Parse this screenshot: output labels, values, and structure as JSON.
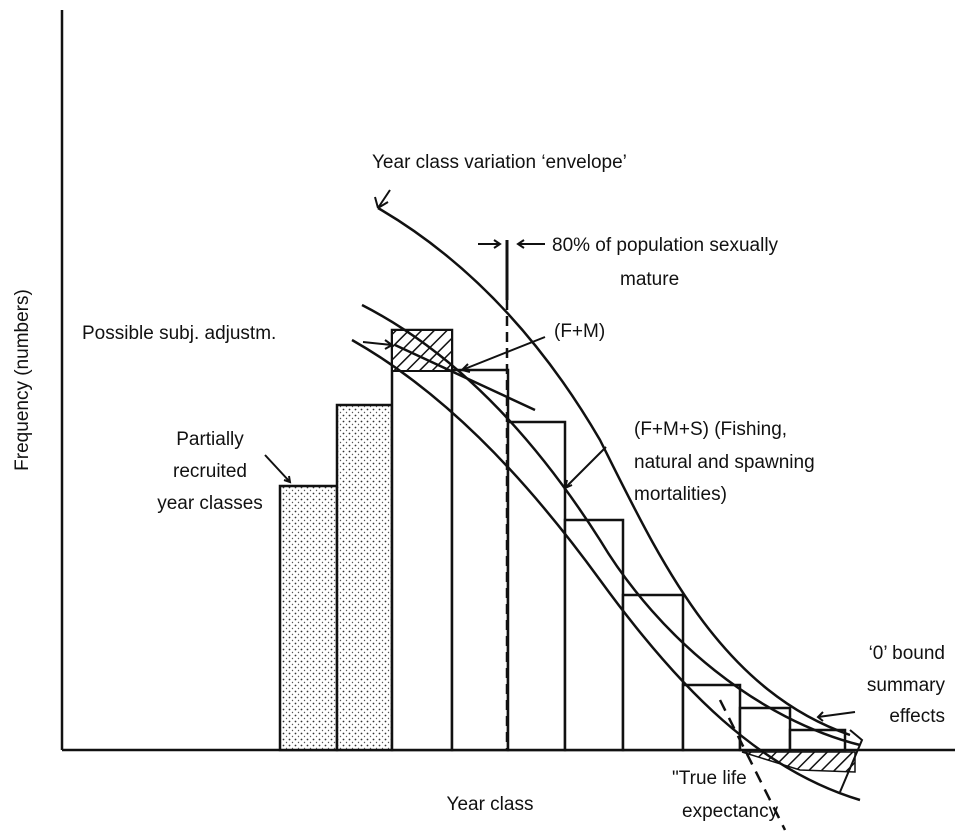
{
  "title": null,
  "axis_labels": {
    "y": "Frequency (numbers)",
    "x": "Year class"
  },
  "annotations": {
    "envelope": "Year class variation ‘envelope’",
    "mature_1": "80% of population sexually",
    "mature_2": "mature",
    "adjust": "Possible subj. adjustm.",
    "fm": "(F+M)",
    "fms_1": "(F+M+S) (Fishing,",
    "fms_2": "natural and spawning",
    "fms_3": "mortalities)",
    "partial_1": "Partially",
    "partial_2": "recruited",
    "partial_3": "year classes",
    "bound_1": "‘0’ bound",
    "bound_2": "summary",
    "bound_3": "effects",
    "life_1": "\"True life",
    "life_2": "expectancy"
  }
}
